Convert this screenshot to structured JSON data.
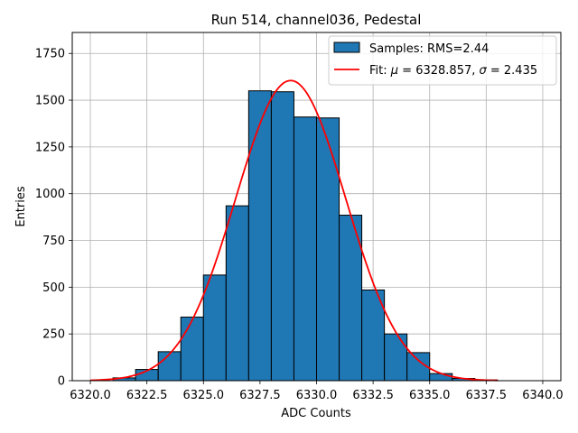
{
  "chart_data": {
    "type": "bar",
    "title": "Run 514, channel036, Pedestal",
    "xlabel": "ADC Counts",
    "ylabel": "Entries",
    "xlim": [
      6319.2,
      6340.8
    ],
    "ylim": [
      0,
      1862
    ],
    "xticks": [
      6320.0,
      6322.5,
      6325.0,
      6327.5,
      6330.0,
      6332.5,
      6335.0,
      6337.5,
      6340.0
    ],
    "xtick_labels": [
      "6320.0",
      "6322.5",
      "6325.0",
      "6327.5",
      "6330.0",
      "6332.5",
      "6335.0",
      "6337.5",
      "6340.0"
    ],
    "yticks": [
      0,
      250,
      500,
      750,
      1000,
      1250,
      1500,
      1750
    ],
    "ytick_labels": [
      "0",
      "250",
      "500",
      "750",
      "1000",
      "1250",
      "1500",
      "1750"
    ],
    "grid": true,
    "legend_position": "top-right",
    "histogram": {
      "name": "Samples: RMS=2.44",
      "color": "#1f77b4",
      "edge_color": "#000000",
      "bin_width": 1,
      "bin_left_edges": [
        6321,
        6322,
        6323,
        6324,
        6325,
        6326,
        6327,
        6328,
        6329,
        6330,
        6331,
        6332,
        6333,
        6334,
        6335,
        6336,
        6337
      ],
      "counts": [
        15,
        60,
        155,
        340,
        565,
        935,
        1550,
        1545,
        1410,
        1405,
        885,
        485,
        250,
        150,
        38,
        12,
        4
      ]
    },
    "fit": {
      "name_prefix": "Fit: ",
      "name_mu": "μ",
      "name_mid": " = 6328.857, ",
      "name_sigma": "σ",
      "name_suffix": " = 2.435",
      "color": "#ff0000",
      "mu": 6328.857,
      "sigma": 2.435,
      "amplitude": 1605,
      "x_range": [
        6320,
        6338
      ]
    }
  }
}
